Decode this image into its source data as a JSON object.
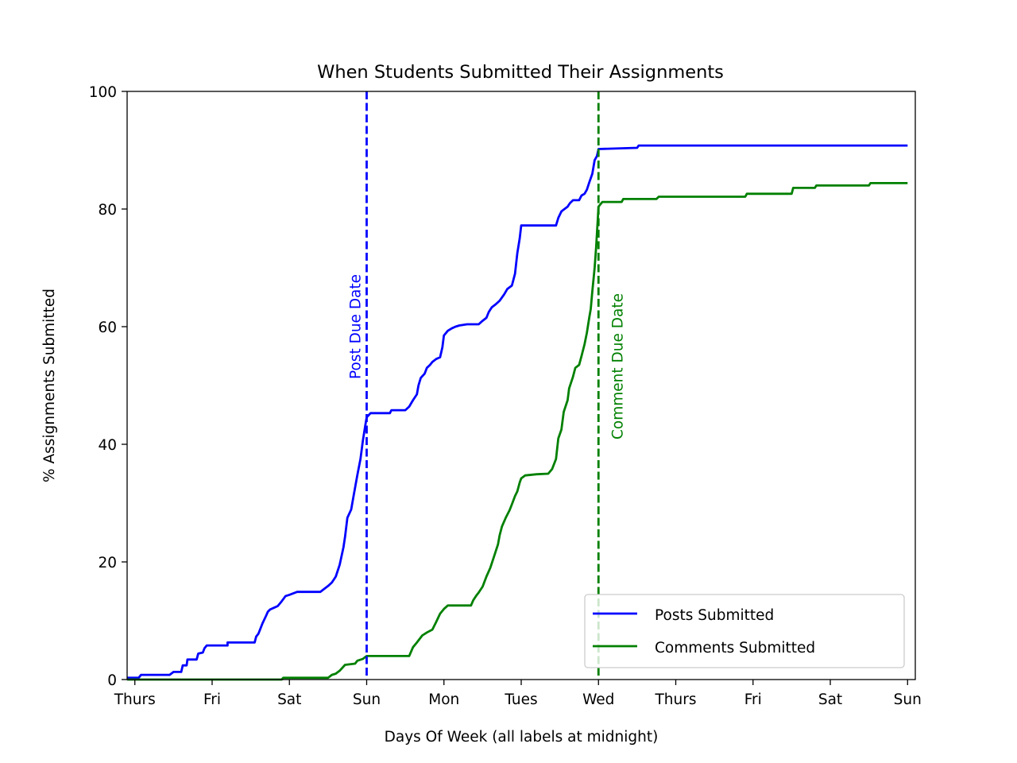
{
  "chart_data": {
    "type": "line",
    "title": "When Students Submitted Their Assignments",
    "xlabel": "Days Of Week (all labels at midnight)",
    "ylabel": "% Assignments Submitted",
    "xlim": [
      -0.1,
      10.1
    ],
    "ylim": [
      0,
      100
    ],
    "x_ticks": [
      {
        "x": 0,
        "label": "Thurs"
      },
      {
        "x": 1,
        "label": "Fri"
      },
      {
        "x": 2,
        "label": "Sat"
      },
      {
        "x": 3,
        "label": "Sun"
      },
      {
        "x": 4,
        "label": "Mon"
      },
      {
        "x": 5,
        "label": "Tues"
      },
      {
        "x": 6,
        "label": "Wed"
      },
      {
        "x": 7,
        "label": "Thurs"
      },
      {
        "x": 8,
        "label": "Fri"
      },
      {
        "x": 9,
        "label": "Sat"
      },
      {
        "x": 10,
        "label": "Sun"
      }
    ],
    "y_ticks": [
      0,
      20,
      40,
      60,
      80,
      100
    ],
    "grid": false,
    "legend_position": "lower-right",
    "series": [
      {
        "name": "Posts Submitted",
        "color": "#0000ff",
        "points": [
          [
            -0.1,
            0.3
          ],
          [
            0.05,
            0.3
          ],
          [
            0.08,
            0.8
          ],
          [
            0.45,
            0.8
          ],
          [
            0.5,
            1.3
          ],
          [
            0.6,
            1.3
          ],
          [
            0.62,
            2.4
          ],
          [
            0.67,
            2.4
          ],
          [
            0.68,
            3.4
          ],
          [
            0.8,
            3.4
          ],
          [
            0.82,
            4.4
          ],
          [
            0.88,
            4.6
          ],
          [
            0.9,
            5.3
          ],
          [
            0.93,
            5.8
          ],
          [
            1.2,
            5.8
          ],
          [
            1.2,
            6.3
          ],
          [
            1.55,
            6.3
          ],
          [
            1.57,
            7.3
          ],
          [
            1.6,
            7.8
          ],
          [
            1.65,
            9.5
          ],
          [
            1.7,
            10.9
          ],
          [
            1.72,
            11.5
          ],
          [
            1.75,
            11.9
          ],
          [
            1.8,
            12.2
          ],
          [
            1.85,
            12.5
          ],
          [
            1.9,
            13.3
          ],
          [
            1.95,
            14.2
          ],
          [
            2.0,
            14.4
          ],
          [
            2.1,
            14.9
          ],
          [
            2.4,
            14.9
          ],
          [
            2.45,
            15.4
          ],
          [
            2.5,
            15.9
          ],
          [
            2.55,
            16.5
          ],
          [
            2.6,
            17.5
          ],
          [
            2.65,
            19.5
          ],
          [
            2.7,
            22.5
          ],
          [
            2.72,
            24.3
          ],
          [
            2.75,
            27.5
          ],
          [
            2.8,
            28.9
          ],
          [
            2.83,
            31.2
          ],
          [
            2.88,
            34.8
          ],
          [
            2.92,
            37.5
          ],
          [
            2.95,
            40.5
          ],
          [
            2.98,
            43.0
          ],
          [
            3.0,
            44.6
          ],
          [
            3.05,
            45.3
          ],
          [
            3.3,
            45.3
          ],
          [
            3.32,
            45.8
          ],
          [
            3.5,
            45.8
          ],
          [
            3.55,
            46.4
          ],
          [
            3.6,
            47.5
          ],
          [
            3.65,
            48.5
          ],
          [
            3.67,
            50.0
          ],
          [
            3.7,
            51.3
          ],
          [
            3.75,
            52.0
          ],
          [
            3.78,
            53.0
          ],
          [
            3.82,
            53.5
          ],
          [
            3.85,
            54.0
          ],
          [
            3.9,
            54.5
          ],
          [
            3.95,
            54.8
          ],
          [
            3.98,
            56.5
          ],
          [
            4.0,
            58.5
          ],
          [
            4.05,
            59.3
          ],
          [
            4.1,
            59.7
          ],
          [
            4.15,
            60.0
          ],
          [
            4.2,
            60.2
          ],
          [
            4.3,
            60.4
          ],
          [
            4.45,
            60.4
          ],
          [
            4.5,
            61.0
          ],
          [
            4.55,
            61.5
          ],
          [
            4.58,
            62.5
          ],
          [
            4.62,
            63.3
          ],
          [
            4.67,
            63.8
          ],
          [
            4.72,
            64.4
          ],
          [
            4.78,
            65.5
          ],
          [
            4.82,
            66.4
          ],
          [
            4.88,
            67.0
          ],
          [
            4.92,
            69.0
          ],
          [
            4.95,
            72.5
          ],
          [
            4.98,
            75.0
          ],
          [
            5.0,
            77.2
          ],
          [
            5.45,
            77.2
          ],
          [
            5.48,
            78.5
          ],
          [
            5.52,
            79.6
          ],
          [
            5.55,
            79.9
          ],
          [
            5.6,
            80.4
          ],
          [
            5.63,
            81.0
          ],
          [
            5.67,
            81.5
          ],
          [
            5.75,
            81.5
          ],
          [
            5.78,
            82.3
          ],
          [
            5.82,
            82.6
          ],
          [
            5.85,
            83.3
          ],
          [
            5.88,
            84.5
          ],
          [
            5.92,
            86.0
          ],
          [
            5.95,
            88.3
          ],
          [
            5.98,
            89.0
          ],
          [
            6.0,
            90.2
          ],
          [
            6.5,
            90.4
          ],
          [
            6.52,
            90.8
          ],
          [
            10.0,
            90.8
          ]
        ]
      },
      {
        "name": "Comments Submitted",
        "color": "#008000",
        "points": [
          [
            -0.1,
            0.0
          ],
          [
            1.9,
            0.0
          ],
          [
            1.92,
            0.3
          ],
          [
            2.5,
            0.3
          ],
          [
            2.55,
            0.8
          ],
          [
            2.6,
            1.0
          ],
          [
            2.65,
            1.5
          ],
          [
            2.72,
            2.5
          ],
          [
            2.85,
            2.7
          ],
          [
            2.88,
            3.2
          ],
          [
            2.95,
            3.5
          ],
          [
            2.98,
            3.8
          ],
          [
            3.0,
            4.0
          ],
          [
            3.55,
            4.0
          ],
          [
            3.6,
            5.5
          ],
          [
            3.65,
            6.3
          ],
          [
            3.72,
            7.5
          ],
          [
            3.78,
            8.0
          ],
          [
            3.85,
            8.5
          ],
          [
            3.9,
            9.8
          ],
          [
            3.95,
            11.2
          ],
          [
            4.0,
            12.0
          ],
          [
            4.05,
            12.6
          ],
          [
            4.35,
            12.6
          ],
          [
            4.38,
            13.5
          ],
          [
            4.42,
            14.3
          ],
          [
            4.45,
            14.8
          ],
          [
            4.5,
            15.8
          ],
          [
            4.55,
            17.5
          ],
          [
            4.6,
            19.0
          ],
          [
            4.65,
            21.0
          ],
          [
            4.7,
            23.0
          ],
          [
            4.72,
            24.5
          ],
          [
            4.75,
            26.0
          ],
          [
            4.8,
            27.5
          ],
          [
            4.85,
            28.8
          ],
          [
            4.88,
            29.8
          ],
          [
            4.92,
            31.2
          ],
          [
            4.95,
            32.0
          ],
          [
            4.98,
            33.5
          ],
          [
            5.0,
            34.2
          ],
          [
            5.05,
            34.7
          ],
          [
            5.2,
            34.9
          ],
          [
            5.35,
            35.0
          ],
          [
            5.4,
            35.8
          ],
          [
            5.45,
            37.5
          ],
          [
            5.48,
            41.0
          ],
          [
            5.52,
            42.5
          ],
          [
            5.55,
            45.5
          ],
          [
            5.6,
            47.5
          ],
          [
            5.62,
            49.5
          ],
          [
            5.67,
            51.5
          ],
          [
            5.7,
            53.0
          ],
          [
            5.75,
            53.5
          ],
          [
            5.78,
            55.0
          ],
          [
            5.82,
            57.0
          ],
          [
            5.85,
            59.0
          ],
          [
            5.88,
            61.5
          ],
          [
            5.9,
            63.0
          ],
          [
            5.92,
            66.0
          ],
          [
            5.95,
            70.0
          ],
          [
            5.97,
            73.5
          ],
          [
            6.0,
            80.4
          ],
          [
            6.05,
            81.2
          ],
          [
            6.3,
            81.2
          ],
          [
            6.32,
            81.7
          ],
          [
            6.75,
            81.7
          ],
          [
            6.78,
            82.1
          ],
          [
            7.9,
            82.1
          ],
          [
            7.92,
            82.6
          ],
          [
            8.5,
            82.6
          ],
          [
            8.52,
            83.6
          ],
          [
            8.8,
            83.6
          ],
          [
            8.82,
            84.0
          ],
          [
            9.5,
            84.0
          ],
          [
            9.52,
            84.4
          ],
          [
            10.0,
            84.4
          ]
        ]
      }
    ],
    "vlines": [
      {
        "x": 3.0,
        "label": "Post Due Date",
        "color": "#0000ff",
        "style": "dashed"
      },
      {
        "x": 6.0,
        "label": "Comment Due Date",
        "color": "#008000",
        "style": "dashed"
      }
    ]
  }
}
